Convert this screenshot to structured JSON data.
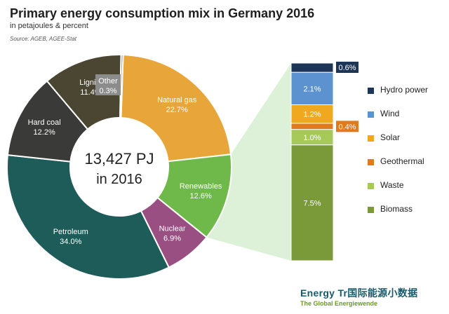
{
  "header": {
    "title": "Primary energy consumption mix in Germany 2016",
    "subtitle": "in petajoules & percent",
    "source": "Source: AGEB, AGEE-Stat"
  },
  "chart_data": {
    "type": "pie",
    "title": "Primary energy consumption mix in Germany 2016",
    "subtitle": "in petajoules & percent",
    "center_label_line1": "13,427 PJ",
    "center_label_line2": "in 2016",
    "slices": [
      {
        "label": "Natural gas",
        "value": 22.7,
        "value_text": "22.7%",
        "color": "#e8a63a"
      },
      {
        "label": "Renewables",
        "value": 12.6,
        "value_text": "12.6%",
        "color": "#6fb84a"
      },
      {
        "label": "Nuclear",
        "value": 6.9,
        "value_text": "6.9%",
        "color": "#9a4f82"
      },
      {
        "label": "Petroleum",
        "value": 34.0,
        "value_text": "34.0%",
        "color": "#1e5c5a"
      },
      {
        "label": "Hard coal",
        "value": 12.2,
        "value_text": "12.2%",
        "color": "#3a3a38"
      },
      {
        "label": "Lignite",
        "value": 11.4,
        "value_text": "11.4%",
        "color": "#4a4632"
      },
      {
        "label": "Other",
        "value": 0.3,
        "value_text": "0.3%",
        "color": "#8c8c8c"
      }
    ],
    "breakdown": {
      "parent": "Renewables",
      "segments": [
        {
          "label": "Hydro power",
          "value": 0.6,
          "value_text": "0.6%",
          "color": "#1d3557"
        },
        {
          "label": "Wind",
          "value": 2.1,
          "value_text": "2.1%",
          "color": "#5b92cf"
        },
        {
          "label": "Solar",
          "value": 1.2,
          "value_text": "1.2%",
          "color": "#f0a81e"
        },
        {
          "label": "Geothermal",
          "value": 0.4,
          "value_text": "0.4%",
          "color": "#e07a1e"
        },
        {
          "label": "Waste",
          "value": 1.0,
          "value_text": "1.0%",
          "color": "#a6c95a"
        },
        {
          "label": "Biomass",
          "value": 7.5,
          "value_text": "7.5%",
          "color": "#7a9a3a"
        }
      ]
    },
    "legend_position": "right"
  },
  "watermark": {
    "line1": "Energy Tr国际能源小数据",
    "line2": "The Global Energiewende"
  }
}
